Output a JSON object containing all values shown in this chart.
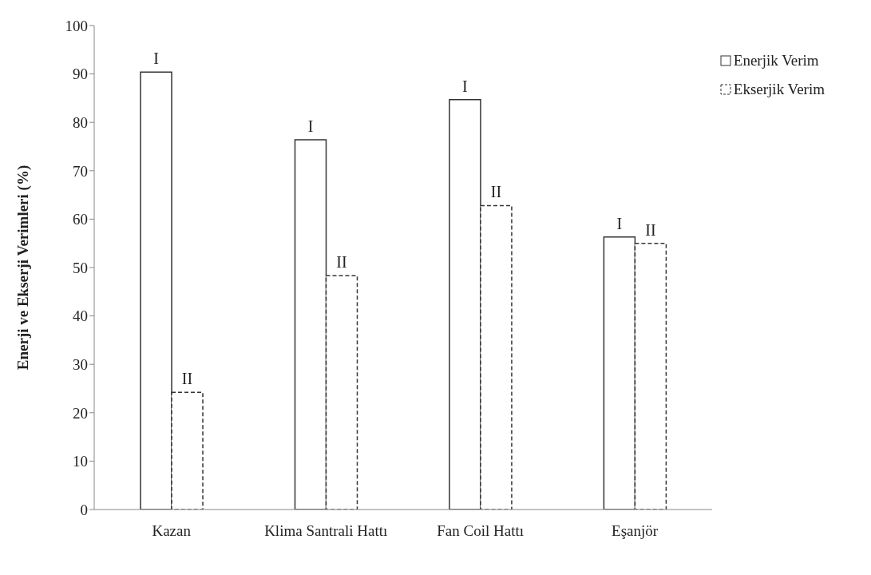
{
  "chart_data": {
    "type": "bar",
    "ylabel": "Enerji ve Ekserji Verimleri (%)",
    "categories": [
      "Kazan",
      "Klima Santrali Hattı",
      "Fan Coil  Hattı",
      "Eşanjör"
    ],
    "series": [
      {
        "name": "Enerjik Verim",
        "color": "#ffffff",
        "line_style": "solid",
        "values": [
          90.4,
          76.4,
          84.7,
          56.3
        ],
        "value_labels": [
          "I",
          "I",
          "I",
          "I"
        ]
      },
      {
        "name": "Ekserjik Verim",
        "color": "#ffffff",
        "line_style": "dashed",
        "values": [
          24.2,
          48.3,
          62.8,
          55.0
        ],
        "value_labels": [
          "II",
          "II",
          "II",
          "II"
        ]
      }
    ],
    "ylim": [
      0,
      100
    ],
    "yticks": [
      0,
      10,
      20,
      30,
      40,
      50,
      60,
      70,
      80,
      90,
      100
    ],
    "grid": false,
    "legend": "top right"
  }
}
